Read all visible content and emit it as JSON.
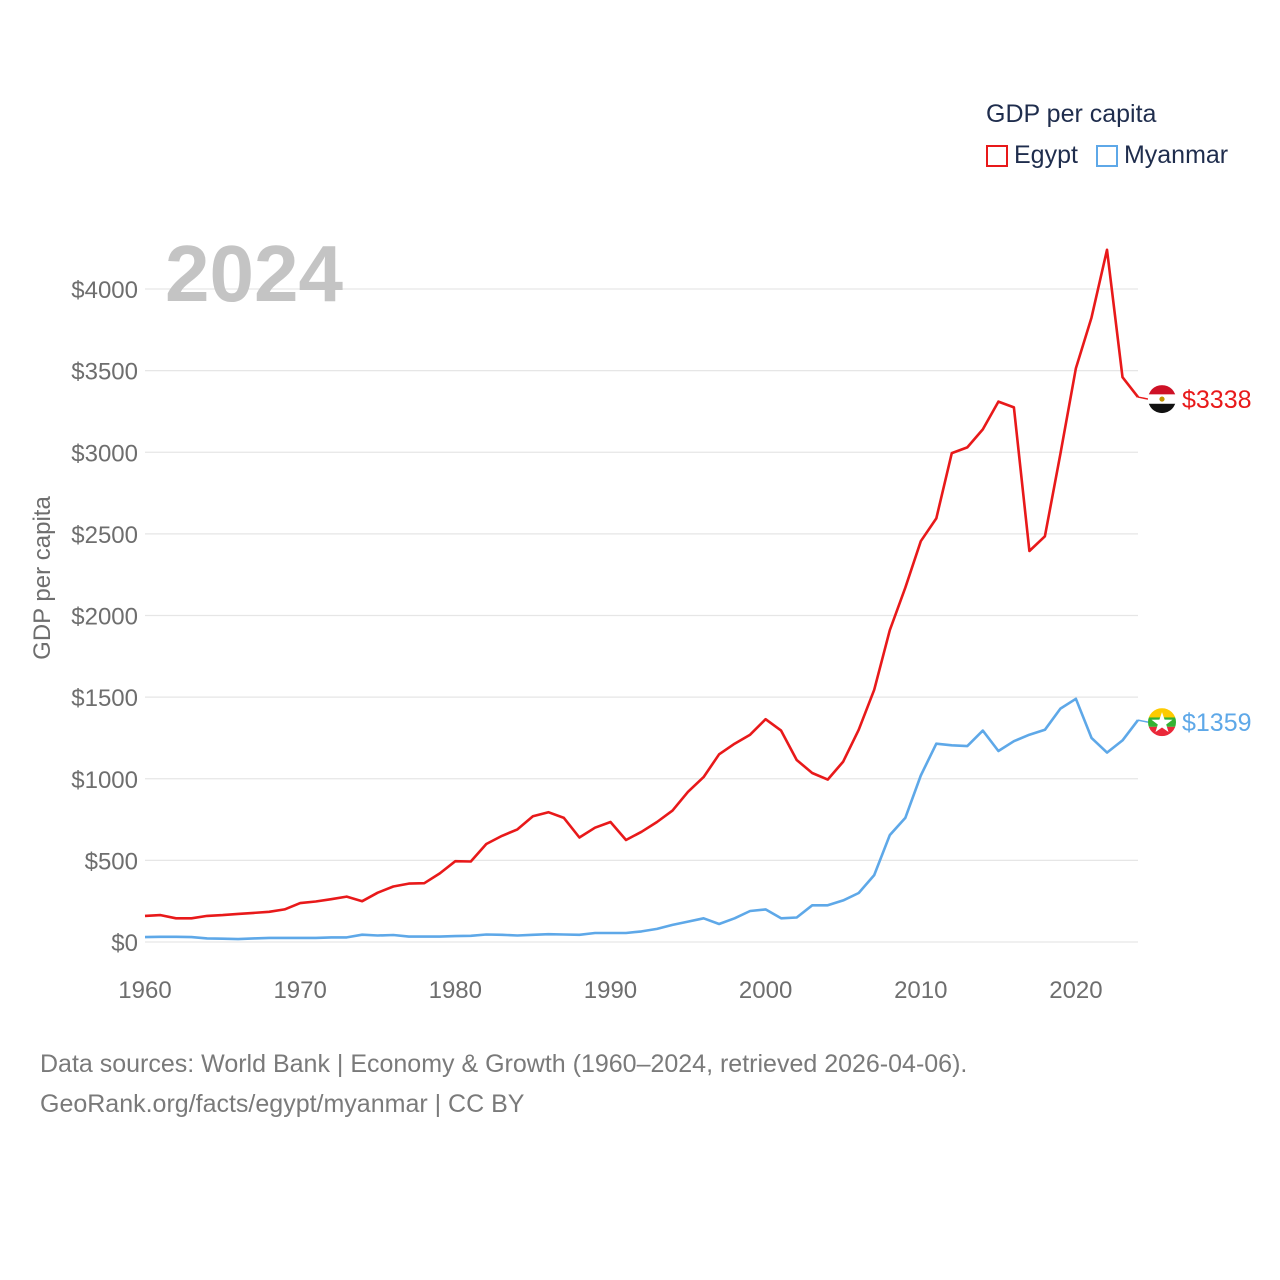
{
  "legend": {
    "title": "GDP per capita",
    "items": [
      {
        "label": "Egypt",
        "color": "#e8191a"
      },
      {
        "label": "Myanmar",
        "color": "#5ea8e8"
      }
    ]
  },
  "highlight_year": "2024",
  "footer": {
    "line1": "Data sources: World Bank | Economy & Growth (1960–2024, retrieved 2026-04-06).",
    "line2": "GeoRank.org/facts/egypt/myanmar | CC BY"
  },
  "chart_data": {
    "type": "line",
    "title": "GDP per capita",
    "xlabel": "",
    "ylabel": "GDP per capita",
    "xlim": [
      1960,
      2024
    ],
    "ylim": [
      0,
      4000
    ],
    "grid": true,
    "legend_position": "top-right",
    "x_ticks": [
      1960,
      1970,
      1980,
      1990,
      2000,
      2010,
      2020
    ],
    "x_tick_labels": [
      "1960",
      "1970",
      "1980",
      "1990",
      "2000",
      "2010",
      "2020"
    ],
    "y_ticks": [
      0,
      500,
      1000,
      1500,
      2000,
      2500,
      3000,
      3500,
      4000
    ],
    "y_tick_labels": [
      "$0",
      "$500",
      "$1000",
      "$1500",
      "$2000",
      "$2500",
      "$3000",
      "$3500",
      "$4000"
    ],
    "x": [
      1960,
      1961,
      1962,
      1963,
      1964,
      1965,
      1966,
      1967,
      1968,
      1969,
      1970,
      1971,
      1972,
      1973,
      1974,
      1975,
      1976,
      1977,
      1978,
      1979,
      1980,
      1981,
      1982,
      1983,
      1984,
      1985,
      1986,
      1987,
      1988,
      1989,
      1990,
      1991,
      1992,
      1993,
      1994,
      1995,
      1996,
      1997,
      1998,
      1999,
      2000,
      2001,
      2002,
      2003,
      2004,
      2005,
      2006,
      2007,
      2008,
      2009,
      2010,
      2011,
      2012,
      2013,
      2014,
      2015,
      2016,
      2017,
      2018,
      2019,
      2020,
      2021,
      2022,
      2023,
      2024
    ],
    "series": [
      {
        "name": "Egypt",
        "color": "#e8191a",
        "end_label": "$3338",
        "values": [
          160,
          165,
          145,
          145,
          160,
          165,
          172,
          178,
          185,
          200,
          238,
          248,
          262,
          278,
          250,
          302,
          340,
          358,
          360,
          420,
          495,
          493,
          600,
          650,
          690,
          770,
          795,
          760,
          640,
          700,
          735,
          625,
          675,
          735,
          805,
          920,
          1010,
          1150,
          1215,
          1270,
          1365,
          1295,
          1115,
          1035,
          995,
          1105,
          1300,
          1545,
          1910,
          2170,
          2455,
          2595,
          2995,
          3030,
          3140,
          3310,
          3275,
          2395,
          2485,
          2990,
          3515,
          3825,
          4240,
          3460,
          3338
        ]
      },
      {
        "name": "Myanmar",
        "color": "#5ea8e8",
        "end_label": "$1359",
        "values": [
          30,
          32,
          32,
          30,
          22,
          20,
          18,
          22,
          25,
          25,
          25,
          25,
          28,
          28,
          45,
          40,
          43,
          33,
          33,
          33,
          36,
          38,
          46,
          44,
          40,
          44,
          48,
          46,
          44,
          55,
          55,
          55,
          65,
          80,
          105,
          125,
          145,
          110,
          145,
          190,
          200,
          145,
          150,
          225,
          225,
          255,
          300,
          410,
          655,
          760,
          1020,
          1215,
          1205,
          1200,
          1295,
          1170,
          1230,
          1270,
          1300,
          1430,
          1490,
          1250,
          1160,
          1235,
          1359
        ]
      }
    ]
  }
}
